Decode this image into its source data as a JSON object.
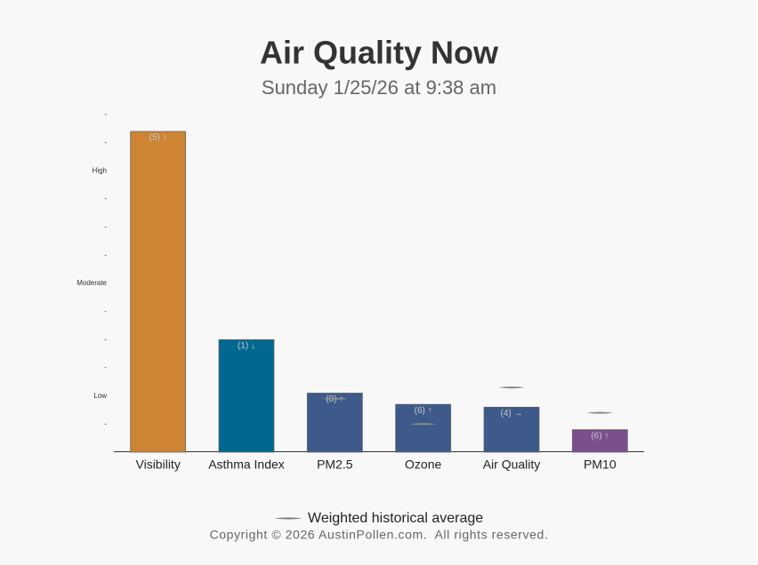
{
  "chart_data": {
    "type": "bar",
    "title": "Air Quality Now",
    "subtitle": "Sunday 1/25/26 at 9:38 am",
    "categories": [
      "Visibility",
      "Asthma Index",
      "PM2.5",
      "Ozone",
      "Air Quality",
      "PM10"
    ],
    "values": [
      11.4,
      4.0,
      2.1,
      1.7,
      1.6,
      0.8
    ],
    "bar_labels": [
      "(5) ↑",
      "(1) ↓",
      "(8) ↑",
      "(6) ↑",
      "(4) →",
      "(6) ↑"
    ],
    "colors": [
      "#cd8534",
      "#006890",
      "#3d5a8a",
      "#3d5a8a",
      "#3d5a8a",
      "#7b4f8e"
    ],
    "average": {
      "name": "Weighted historical average",
      "color": "#8a8a8a",
      "values": [
        null,
        null,
        1.9,
        1.0,
        2.3,
        1.4
      ]
    },
    "ylim": [
      0,
      12
    ],
    "yticks": [
      {
        "value": 1,
        "label": "-"
      },
      {
        "value": 2,
        "label": "Low"
      },
      {
        "value": 3,
        "label": "-"
      },
      {
        "value": 4,
        "label": "-"
      },
      {
        "value": 5,
        "label": "-"
      },
      {
        "value": 6,
        "label": "Moderate"
      },
      {
        "value": 7,
        "label": "-"
      },
      {
        "value": 8,
        "label": "-"
      },
      {
        "value": 9,
        "label": "-"
      },
      {
        "value": 10,
        "label": "High"
      },
      {
        "value": 11,
        "label": "-"
      },
      {
        "value": 12,
        "label": "-"
      }
    ]
  },
  "footer": {
    "copyright": "Copyright © 2026 AustinPollen.com.  All rights reserved."
  }
}
